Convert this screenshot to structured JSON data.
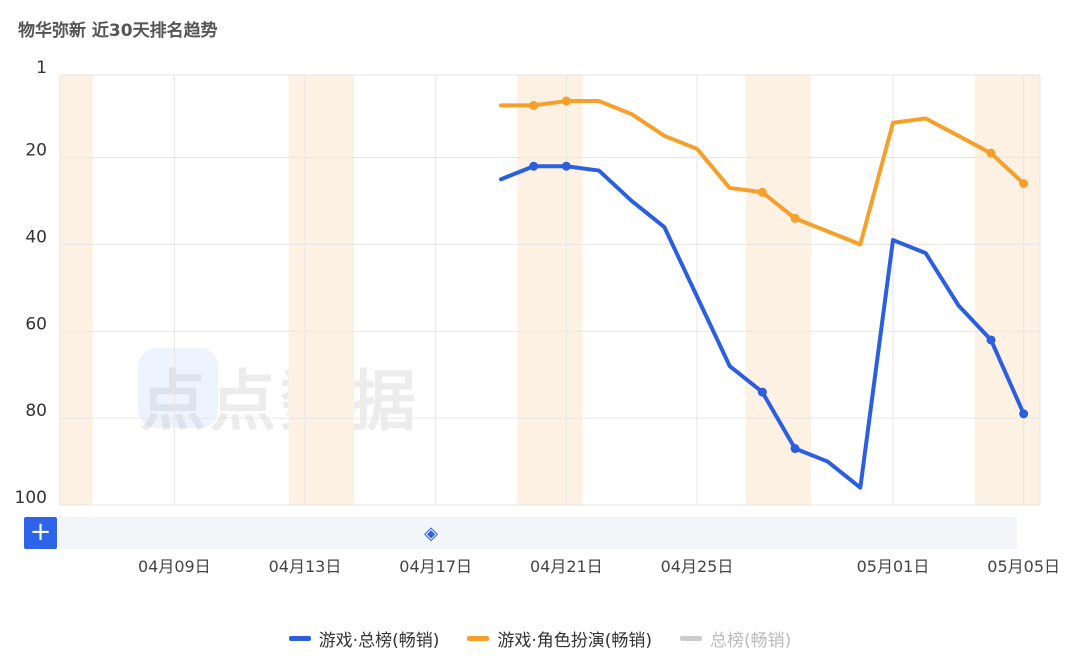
{
  "title": "物华弥新 近30天排名趋势",
  "chart_data": {
    "type": "line",
    "y_inverted": true,
    "ylim": [
      1,
      100
    ],
    "y_ticks": [
      "1",
      "20",
      "40",
      "60",
      "80",
      "100"
    ],
    "x_ticks": [
      "04月09日",
      "04月13日",
      "04月17日",
      "04月21日",
      "04月25日",
      "05月01日",
      "05月05日"
    ],
    "x_dates": [
      "04-06",
      "04-07",
      "04-08",
      "04-09",
      "04-10",
      "04-11",
      "04-12",
      "04-13",
      "04-14",
      "04-15",
      "04-16",
      "04-17",
      "04-18",
      "04-19",
      "04-20",
      "04-21",
      "04-22",
      "04-23",
      "04-24",
      "04-25",
      "04-26",
      "04-27",
      "04-28",
      "04-29",
      "04-30",
      "05-01",
      "05-02",
      "05-03",
      "05-04",
      "05-05"
    ],
    "weekend_bands": [
      [
        "04-06",
        "04-06"
      ],
      [
        "04-13",
        "04-14"
      ],
      [
        "04-20",
        "04-21"
      ],
      [
        "04-27",
        "04-28"
      ],
      [
        "05-04",
        "05-05"
      ]
    ],
    "series": [
      {
        "name": "游戏·总榜(畅销)",
        "color": "#2c5fe0",
        "points": [
          {
            "x": "04-19",
            "y": 25
          },
          {
            "x": "04-20",
            "y": 22,
            "marker": true
          },
          {
            "x": "04-21",
            "y": 22,
            "marker": true
          },
          {
            "x": "04-22",
            "y": 23
          },
          {
            "x": "04-23",
            "y": 30
          },
          {
            "x": "04-24",
            "y": 36
          },
          {
            "x": "04-25",
            "y": 52
          },
          {
            "x": "04-26",
            "y": 68
          },
          {
            "x": "04-27",
            "y": 74,
            "marker": true
          },
          {
            "x": "04-28",
            "y": 87,
            "marker": true
          },
          {
            "x": "04-29",
            "y": 90
          },
          {
            "x": "04-30",
            "y": 96
          },
          {
            "x": "05-01",
            "y": 39
          },
          {
            "x": "05-02",
            "y": 42
          },
          {
            "x": "05-03",
            "y": 54
          },
          {
            "x": "05-04",
            "y": 62,
            "marker": true
          },
          {
            "x": "05-05",
            "y": 79,
            "marker": true
          }
        ]
      },
      {
        "name": "游戏·角色扮演(畅销)",
        "color": "#f5a02a",
        "points": [
          {
            "x": "04-19",
            "y": 8
          },
          {
            "x": "04-20",
            "y": 8,
            "marker": true
          },
          {
            "x": "04-21",
            "y": 7,
            "marker": true
          },
          {
            "x": "04-22",
            "y": 7
          },
          {
            "x": "04-23",
            "y": 10
          },
          {
            "x": "04-24",
            "y": 15
          },
          {
            "x": "04-25",
            "y": 18
          },
          {
            "x": "04-26",
            "y": 27
          },
          {
            "x": "04-27",
            "y": 28,
            "marker": true
          },
          {
            "x": "04-28",
            "y": 34,
            "marker": true
          },
          {
            "x": "04-29",
            "y": 37
          },
          {
            "x": "04-30",
            "y": 40
          },
          {
            "x": "05-01",
            "y": 12
          },
          {
            "x": "05-02",
            "y": 11
          },
          {
            "x": "05-03",
            "y": 15
          },
          {
            "x": "05-04",
            "y": 19,
            "marker": true
          },
          {
            "x": "05-05",
            "y": 26,
            "marker": true
          }
        ]
      }
    ],
    "legend": [
      {
        "label": "游戏·总榜(畅销)",
        "color": "#2c5fe0",
        "enabled": true
      },
      {
        "label": "游戏·角色扮演(畅销)",
        "color": "#f5a02a",
        "enabled": true
      },
      {
        "label": "总榜(畅销)",
        "color": "#cccccc",
        "enabled": false
      }
    ],
    "grid": true,
    "legend_position": "bottom"
  },
  "watermark": "点点数据",
  "zoom": {
    "button": "+"
  }
}
